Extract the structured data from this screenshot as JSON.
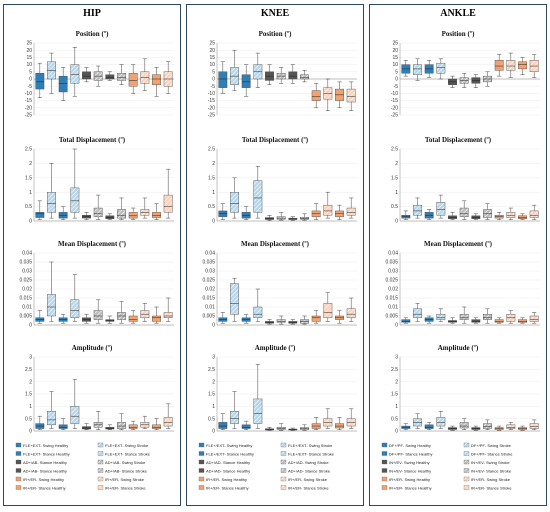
{
  "joints": [
    {
      "title": "HIP",
      "legend": [
        "FLE+EXT- Swing Healthy",
        "FLE+EXT- Swing Stroke",
        "FLE+EXT- Stance Healthy",
        "FLE+EXT- Stance Stroke",
        "AD+/AB- Stance Healthy",
        "AD+/AB- Swing Stroke",
        "AD+/AB- Stance Healthy",
        "AD+/AB- Stance Stroke",
        "IR+/ER- Swing Healthy",
        "IR+/ER- Swing Stroke",
        "IR+/ER- Stance Healthy",
        "IR+/ER- Stance Stroke"
      ]
    },
    {
      "title": "KNEE",
      "legend": [
        "FLE+/EXT- Swing Healthy",
        "FLE+/EXT- Swing Stroke",
        "FLE+/EXT- Stance Healthy",
        "FLE+/EXT- Stance Stroke",
        "AD+/AD- Stance Healthy",
        "AD+/AD- Swing Stroke",
        "AD+/AD- Stance Healthy",
        "AD+/AD- Stance Stroke",
        "IR+/ER- Swing Healthy",
        "IR+/ER- Swing Stroke",
        "IR+/ER- Stance Healthy",
        "IR+/ER- Stance Stroke"
      ]
    },
    {
      "title": "ANKLE",
      "legend": [
        "DF+/PF- Swing Healthy",
        "DF+/PF- Swing Stroke",
        "DF+/PF- Stance Healthy",
        "DF+/PF- Stance Stroke",
        "IN+/EV- Swing Healthy",
        "IN+/EV- Swing Stroke",
        "IN+/EV- Stance Healthy",
        "IN+/EV- Stance Stroke",
        "IR+/ER- Swing Healthy",
        "IR+/ER- Swing Stroke",
        "IR+/ER- Stance Healthy",
        "IR+/ER- Stance Stroke"
      ]
    }
  ],
  "colors": {
    "plane1_healthy": "#2f7fb6",
    "plane1_stroke": "#b9d7ea",
    "plane2_healthy": "#555555",
    "plane2_stroke": "#bdbdbd",
    "plane3_healthy": "#f2a272",
    "plane3_stroke": "#f9d3bd"
  },
  "chart_data": [
    {
      "joint": "HIP",
      "type": "box",
      "title": "Position (º)",
      "ylim": [
        -25,
        25
      ],
      "yticks": [
        "-25",
        "-20",
        "-15",
        "-10",
        "-5",
        "0",
        "5",
        "10",
        "15",
        "20",
        "25"
      ],
      "boxes": [
        [
          -13,
          -7,
          -2,
          4,
          11
        ],
        [
          -10,
          0,
          6,
          12,
          18
        ],
        [
          -15,
          -9,
          -3,
          2,
          8
        ],
        [
          -12,
          -3,
          3,
          10,
          22
        ],
        [
          -2,
          0,
          2,
          5,
          8
        ],
        [
          -5,
          -1,
          2,
          5,
          9
        ],
        [
          -1,
          0,
          1,
          3,
          5
        ],
        [
          -4,
          -1,
          1,
          4,
          10
        ],
        [
          -10,
          -5,
          -1,
          4,
          10
        ],
        [
          -8,
          -3,
          1,
          5,
          14
        ],
        [
          -12,
          -4,
          0,
          3,
          8
        ],
        [
          -10,
          -5,
          0,
          5,
          12
        ]
      ]
    },
    {
      "joint": "HIP",
      "type": "box",
      "title": "Total Displacement (º)",
      "ylim": [
        0,
        2.5
      ],
      "yticks": [
        "0",
        "0.5",
        "1",
        "1.5",
        "2",
        "2.5"
      ],
      "boxes": [
        [
          0.05,
          0.12,
          0.25,
          0.3,
          0.7
        ],
        [
          0.1,
          0.3,
          0.6,
          1.0,
          2.0
        ],
        [
          0.05,
          0.1,
          0.2,
          0.3,
          0.5
        ],
        [
          0.1,
          0.3,
          0.7,
          1.15,
          2.5
        ],
        [
          0.05,
          0.1,
          0.15,
          0.2,
          0.3
        ],
        [
          0.05,
          0.15,
          0.25,
          0.45,
          0.9
        ],
        [
          0.05,
          0.08,
          0.12,
          0.18,
          0.25
        ],
        [
          0.05,
          0.1,
          0.2,
          0.4,
          0.8
        ],
        [
          0.05,
          0.1,
          0.18,
          0.3,
          0.45
        ],
        [
          0.1,
          0.2,
          0.3,
          0.4,
          0.8
        ],
        [
          0.05,
          0.12,
          0.2,
          0.3,
          0.6
        ],
        [
          0.1,
          0.3,
          0.5,
          0.9,
          1.8
        ]
      ]
    },
    {
      "joint": "HIP",
      "type": "box",
      "title": "Mean Displacement (º)",
      "ylim": [
        0,
        0.04
      ],
      "yticks": [
        "0",
        "0.005",
        "0.01",
        "0.015",
        "0.02",
        "0.025",
        "0.03",
        "0.035",
        "0.04"
      ],
      "boxes": [
        [
          0.001,
          0.002,
          0.003,
          0.004,
          0.008
        ],
        [
          0.002,
          0.005,
          0.01,
          0.017,
          0.035
        ],
        [
          0.001,
          0.002,
          0.003,
          0.004,
          0.006
        ],
        [
          0.002,
          0.004,
          0.008,
          0.014,
          0.028
        ],
        [
          0.001,
          0.002,
          0.003,
          0.004,
          0.006
        ],
        [
          0.001,
          0.003,
          0.005,
          0.008,
          0.014
        ],
        [
          0.001,
          0.002,
          0.0025,
          0.003,
          0.005
        ],
        [
          0.001,
          0.003,
          0.005,
          0.007,
          0.013
        ],
        [
          0.001,
          0.002,
          0.003,
          0.005,
          0.008
        ],
        [
          0.002,
          0.004,
          0.006,
          0.008,
          0.012
        ],
        [
          0.001,
          0.002,
          0.004,
          0.005,
          0.01
        ],
        [
          0.002,
          0.004,
          0.005,
          0.007,
          0.015
        ]
      ]
    },
    {
      "joint": "HIP",
      "type": "box",
      "title": "Amplitude (º)",
      "ylim": [
        0,
        3
      ],
      "yticks": [
        "0",
        "0.5",
        "1",
        "1.5",
        "2",
        "2.5",
        "3"
      ],
      "boxes": [
        [
          0.05,
          0.1,
          0.2,
          0.3,
          0.6
        ],
        [
          0.1,
          0.25,
          0.45,
          0.8,
          1.6
        ],
        [
          0.05,
          0.1,
          0.15,
          0.25,
          0.5
        ],
        [
          0.1,
          0.3,
          0.6,
          1.0,
          2.1
        ],
        [
          0.05,
          0.08,
          0.12,
          0.18,
          0.3
        ],
        [
          0.05,
          0.15,
          0.25,
          0.35,
          0.8
        ],
        [
          0.05,
          0.08,
          0.1,
          0.15,
          0.25
        ],
        [
          0.05,
          0.1,
          0.2,
          0.35,
          0.7
        ],
        [
          0.05,
          0.1,
          0.15,
          0.25,
          0.4
        ],
        [
          0.1,
          0.15,
          0.25,
          0.35,
          0.6
        ],
        [
          0.05,
          0.1,
          0.15,
          0.25,
          0.5
        ],
        [
          0.1,
          0.2,
          0.35,
          0.55,
          1.1
        ]
      ]
    },
    {
      "joint": "KNEE",
      "type": "box",
      "title": "Position (º)",
      "ylim": [
        -25,
        25
      ],
      "yticks": [
        "-25",
        "-20",
        "-15",
        "-10",
        "-5",
        "0",
        "5",
        "10",
        "15",
        "20",
        "25"
      ],
      "boxes": [
        [
          -10,
          -6,
          0,
          5,
          12
        ],
        [
          -8,
          -4,
          2,
          8,
          20
        ],
        [
          -12,
          -6,
          -2,
          3,
          10
        ],
        [
          -6,
          0,
          5,
          10,
          18
        ],
        [
          -4,
          -1,
          2,
          5,
          10
        ],
        [
          -3,
          0,
          2,
          4,
          8
        ],
        [
          -3,
          0,
          2,
          5,
          10
        ],
        [
          -2,
          0,
          1,
          3,
          6
        ],
        [
          -20,
          -15,
          -12,
          -8,
          -3
        ],
        [
          -22,
          -14,
          -10,
          -6,
          0
        ],
        [
          -20,
          -15,
          -11,
          -7,
          -2
        ],
        [
          -22,
          -16,
          -12,
          -7,
          -2
        ]
      ]
    },
    {
      "joint": "KNEE",
      "type": "box",
      "title": "Total Displacement (º)",
      "ylim": [
        0,
        2.5
      ],
      "yticks": [
        "0",
        "0.5",
        "1",
        "1.5",
        "2",
        "2.5"
      ],
      "boxes": [
        [
          0.05,
          0.15,
          0.25,
          0.35,
          0.6
        ],
        [
          0.1,
          0.3,
          0.6,
          1.0,
          1.5
        ],
        [
          0.05,
          0.1,
          0.2,
          0.3,
          0.5
        ],
        [
          0.1,
          0.3,
          0.8,
          1.4,
          1.9
        ],
        [
          0.02,
          0.05,
          0.08,
          0.12,
          0.2
        ],
        [
          0.03,
          0.06,
          0.1,
          0.15,
          0.3
        ],
        [
          0.02,
          0.05,
          0.07,
          0.1,
          0.15
        ],
        [
          0.03,
          0.06,
          0.09,
          0.13,
          0.25
        ],
        [
          0.05,
          0.15,
          0.25,
          0.35,
          0.6
        ],
        [
          0.1,
          0.2,
          0.35,
          0.55,
          1.0
        ],
        [
          0.05,
          0.15,
          0.25,
          0.35,
          0.55
        ],
        [
          0.1,
          0.2,
          0.3,
          0.45,
          0.8
        ]
      ]
    },
    {
      "joint": "KNEE",
      "type": "box",
      "title": "Mean Displacement (º)",
      "ylim": [
        0,
        0.04
      ],
      "yticks": [
        "0",
        "0.005",
        "0.01",
        "0.015",
        "0.02",
        "0.025",
        "0.03",
        "0.035",
        "0.04"
      ],
      "boxes": [
        [
          0.001,
          0.002,
          0.003,
          0.004,
          0.007
        ],
        [
          0.002,
          0.006,
          0.012,
          0.023,
          0.026
        ],
        [
          0.001,
          0.002,
          0.003,
          0.004,
          0.006
        ],
        [
          0.002,
          0.004,
          0.006,
          0.01,
          0.02
        ],
        [
          0.0005,
          0.001,
          0.0015,
          0.002,
          0.003
        ],
        [
          0.0005,
          0.0015,
          0.002,
          0.003,
          0.005
        ],
        [
          0.0005,
          0.001,
          0.0015,
          0.002,
          0.003
        ],
        [
          0.0005,
          0.001,
          0.002,
          0.003,
          0.005
        ],
        [
          0.001,
          0.002,
          0.004,
          0.005,
          0.008
        ],
        [
          0.002,
          0.004,
          0.007,
          0.012,
          0.018
        ],
        [
          0.001,
          0.003,
          0.004,
          0.005,
          0.008
        ],
        [
          0.002,
          0.004,
          0.006,
          0.009,
          0.015
        ]
      ]
    },
    {
      "joint": "KNEE",
      "type": "box",
      "title": "Amplitude (º)",
      "ylim": [
        0,
        3
      ],
      "yticks": [
        "0",
        "0.5",
        "1",
        "1.5",
        "2",
        "2.5",
        "3"
      ],
      "boxes": [
        [
          0.05,
          0.1,
          0.2,
          0.35,
          0.7
        ],
        [
          0.1,
          0.3,
          0.5,
          0.8,
          1.6
        ],
        [
          0.05,
          0.1,
          0.15,
          0.25,
          0.4
        ],
        [
          0.1,
          0.3,
          0.7,
          1.3,
          2.7
        ],
        [
          0.02,
          0.04,
          0.06,
          0.09,
          0.15
        ],
        [
          0.03,
          0.06,
          0.1,
          0.15,
          0.3
        ],
        [
          0.02,
          0.04,
          0.06,
          0.08,
          0.12
        ],
        [
          0.03,
          0.06,
          0.1,
          0.14,
          0.25
        ],
        [
          0.05,
          0.1,
          0.2,
          0.3,
          0.55
        ],
        [
          0.1,
          0.2,
          0.35,
          0.5,
          0.9
        ],
        [
          0.05,
          0.12,
          0.2,
          0.3,
          0.55
        ],
        [
          0.1,
          0.2,
          0.35,
          0.5,
          0.9
        ]
      ]
    },
    {
      "joint": "ANKLE",
      "type": "box",
      "title": "Position (º)",
      "ylim": [
        -25,
        25
      ],
      "yticks": [
        "-25",
        "-20",
        "-15",
        "-10",
        "-5",
        "0",
        "5",
        "10",
        "15",
        "20",
        "25"
      ],
      "boxes": [
        [
          2,
          4,
          7,
          10,
          13
        ],
        [
          -1,
          3,
          7,
          10,
          14
        ],
        [
          1,
          4,
          7,
          10,
          13
        ],
        [
          0,
          4,
          8,
          11,
          14
        ],
        [
          -6,
          -4,
          -2,
          0,
          2
        ],
        [
          -6,
          -3,
          -1,
          1,
          4
        ],
        [
          -6,
          -3,
          -1,
          1,
          3
        ],
        [
          -5,
          -2,
          0,
          2,
          5
        ],
        [
          2,
          6,
          9,
          13,
          17
        ],
        [
          1,
          6,
          9,
          13,
          18
        ],
        [
          3,
          7,
          10,
          12,
          15
        ],
        [
          1,
          5,
          9,
          13,
          17
        ]
      ]
    },
    {
      "joint": "ANKLE",
      "type": "box",
      "title": "Total Displacement (º)",
      "ylim": [
        0,
        2.5
      ],
      "yticks": [
        "0",
        "0.5",
        "1",
        "1.5",
        "2",
        "2.5"
      ],
      "boxes": [
        [
          0.05,
          0.1,
          0.15,
          0.2,
          0.35
        ],
        [
          0.1,
          0.2,
          0.35,
          0.55,
          0.8
        ],
        [
          0.05,
          0.1,
          0.2,
          0.3,
          0.4
        ],
        [
          0.1,
          0.2,
          0.4,
          0.65,
          0.9
        ],
        [
          0.05,
          0.08,
          0.12,
          0.18,
          0.3
        ],
        [
          0.05,
          0.15,
          0.25,
          0.45,
          0.7
        ],
        [
          0.05,
          0.08,
          0.12,
          0.18,
          0.25
        ],
        [
          0.05,
          0.12,
          0.25,
          0.4,
          0.6
        ],
        [
          0.05,
          0.1,
          0.15,
          0.2,
          0.3
        ],
        [
          0.05,
          0.12,
          0.2,
          0.3,
          0.45
        ],
        [
          0.05,
          0.08,
          0.12,
          0.18,
          0.25
        ],
        [
          0.05,
          0.12,
          0.2,
          0.35,
          0.55
        ]
      ]
    },
    {
      "joint": "ANKLE",
      "type": "box",
      "title": "Mean Displacement (º)",
      "ylim": [
        0,
        0.04
      ],
      "yticks": [
        "0",
        "0.005",
        "0.01",
        "0.015",
        "0.02",
        "0.025",
        "0.03",
        "0.035",
        "0.04"
      ],
      "boxes": [
        [
          0.001,
          0.0015,
          0.002,
          0.003,
          0.004
        ],
        [
          0.002,
          0.004,
          0.006,
          0.009,
          0.012
        ],
        [
          0.001,
          0.002,
          0.003,
          0.004,
          0.005
        ],
        [
          0.002,
          0.003,
          0.004,
          0.006,
          0.009
        ],
        [
          0.001,
          0.0015,
          0.002,
          0.0025,
          0.004
        ],
        [
          0.001,
          0.003,
          0.004,
          0.006,
          0.01
        ],
        [
          0.001,
          0.0015,
          0.002,
          0.003,
          0.004
        ],
        [
          0.001,
          0.003,
          0.004,
          0.006,
          0.009
        ],
        [
          0.001,
          0.0015,
          0.002,
          0.003,
          0.004
        ],
        [
          0.001,
          0.002,
          0.004,
          0.006,
          0.008
        ],
        [
          0.001,
          0.0015,
          0.002,
          0.003,
          0.004
        ],
        [
          0.001,
          0.002,
          0.003,
          0.005,
          0.007
        ]
      ]
    },
    {
      "joint": "ANKLE",
      "type": "box",
      "title": "Amplitude (º)",
      "ylim": [
        0,
        3
      ],
      "yticks": [
        "0",
        "0.5",
        "1",
        "1.5",
        "2",
        "2.5",
        "3"
      ],
      "boxes": [
        [
          0.05,
          0.1,
          0.15,
          0.2,
          0.3
        ],
        [
          0.1,
          0.2,
          0.35,
          0.5,
          0.7
        ],
        [
          0.05,
          0.1,
          0.15,
          0.25,
          0.35
        ],
        [
          0.1,
          0.2,
          0.35,
          0.55,
          0.8
        ],
        [
          0.03,
          0.06,
          0.1,
          0.14,
          0.2
        ],
        [
          0.05,
          0.12,
          0.2,
          0.35,
          0.5
        ],
        [
          0.03,
          0.06,
          0.1,
          0.14,
          0.2
        ],
        [
          0.05,
          0.1,
          0.18,
          0.3,
          0.45
        ],
        [
          0.03,
          0.06,
          0.1,
          0.14,
          0.2
        ],
        [
          0.05,
          0.1,
          0.15,
          0.25,
          0.35
        ],
        [
          0.03,
          0.06,
          0.1,
          0.14,
          0.2
        ],
        [
          0.05,
          0.1,
          0.18,
          0.3,
          0.45
        ]
      ]
    }
  ]
}
